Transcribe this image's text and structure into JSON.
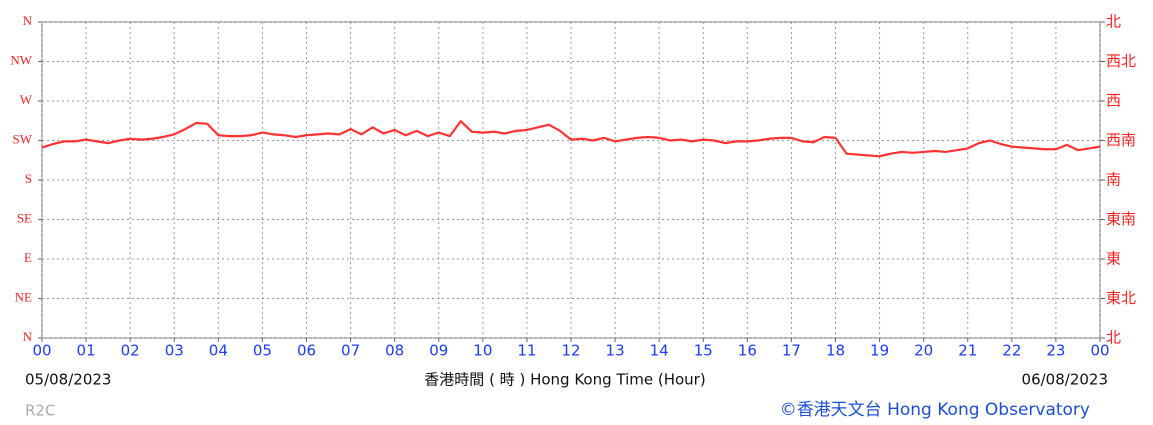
{
  "chart_data": {
    "type": "line",
    "x": [
      0,
      0.25,
      0.5,
      0.75,
      1,
      1.25,
      1.5,
      1.75,
      2,
      2.25,
      2.5,
      2.75,
      3,
      3.25,
      3.5,
      3.75,
      4,
      4.25,
      4.5,
      4.75,
      5,
      5.25,
      5.5,
      5.75,
      6,
      6.25,
      6.5,
      6.75,
      7,
      7.25,
      7.5,
      7.75,
      8,
      8.25,
      8.5,
      8.75,
      9,
      9.25,
      9.5,
      9.75,
      10,
      10.25,
      10.5,
      10.75,
      11,
      11.25,
      11.5,
      11.75,
      12,
      12.25,
      12.5,
      12.75,
      13,
      13.25,
      13.5,
      13.75,
      14,
      14.25,
      14.5,
      14.75,
      15,
      15.25,
      15.5,
      15.75,
      16,
      16.25,
      16.5,
      16.75,
      17,
      17.25,
      17.5,
      17.75,
      18,
      18.25,
      18.5,
      18.75,
      19,
      19.25,
      19.5,
      19.75,
      20,
      20.25,
      20.5,
      20.75,
      21,
      21.25,
      21.5,
      21.75,
      22,
      22.25,
      22.5,
      22.75,
      23,
      23.25,
      23.5,
      23.75,
      24
    ],
    "series": [
      {
        "color": "#ff3333",
        "values": [
          217,
          221,
          224,
          224,
          226,
          224,
          222,
          225,
          227,
          226,
          227,
          229,
          232,
          238,
          245,
          244,
          231,
          230,
          230,
          231,
          234,
          232,
          231,
          229,
          231,
          232,
          233,
          232,
          238,
          232,
          240,
          233,
          237,
          231,
          236,
          230,
          234,
          230,
          247,
          235,
          234,
          235,
          233,
          236,
          237,
          240,
          243,
          236,
          226,
          227,
          225,
          228,
          224,
          226,
          228,
          229,
          228,
          225,
          226,
          224,
          226,
          225,
          222,
          224,
          224,
          225,
          227,
          228,
          228,
          224,
          223,
          229,
          228,
          210,
          209,
          208,
          207,
          210,
          212,
          211,
          212,
          213,
          212,
          214,
          216,
          222,
          225,
          221,
          218,
          217,
          216,
          215,
          215,
          220,
          214,
          216,
          218
        ]
      }
    ],
    "xlim": [
      0,
      24
    ],
    "xticks": [
      {
        "value": 0,
        "label": "00"
      },
      {
        "value": 1,
        "label": "01"
      },
      {
        "value": 2,
        "label": "02"
      },
      {
        "value": 3,
        "label": "03"
      },
      {
        "value": 4,
        "label": "04"
      },
      {
        "value": 5,
        "label": "05"
      },
      {
        "value": 6,
        "label": "06"
      },
      {
        "value": 7,
        "label": "07"
      },
      {
        "value": 8,
        "label": "08"
      },
      {
        "value": 9,
        "label": "09"
      },
      {
        "value": 10,
        "label": "10"
      },
      {
        "value": 11,
        "label": "11"
      },
      {
        "value": 12,
        "label": "12"
      },
      {
        "value": 13,
        "label": "13"
      },
      {
        "value": 14,
        "label": "14"
      },
      {
        "value": 15,
        "label": "15"
      },
      {
        "value": 16,
        "label": "16"
      },
      {
        "value": 17,
        "label": "17"
      },
      {
        "value": 18,
        "label": "18"
      },
      {
        "value": 19,
        "label": "19"
      },
      {
        "value": 20,
        "label": "20"
      },
      {
        "value": 21,
        "label": "21"
      },
      {
        "value": 22,
        "label": "22"
      },
      {
        "value": 23,
        "label": "23"
      },
      {
        "value": 24,
        "label": "00"
      }
    ],
    "ylim": [
      0,
      360
    ],
    "yticks": [
      {
        "value": 0,
        "label": "N"
      },
      {
        "value": 45,
        "label": "NE"
      },
      {
        "value": 90,
        "label": "E"
      },
      {
        "value": 135,
        "label": "SE"
      },
      {
        "value": 180,
        "label": "S"
      },
      {
        "value": 225,
        "label": "SW"
      },
      {
        "value": 270,
        "label": "W"
      },
      {
        "value": 315,
        "label": "NW"
      },
      {
        "value": 360,
        "label": "N"
      }
    ],
    "y2lim": [
      0,
      360
    ],
    "y2ticks": [
      {
        "value": 0,
        "label": "北"
      },
      {
        "value": 45,
        "label": "東北"
      },
      {
        "value": 90,
        "label": "東"
      },
      {
        "value": 135,
        "label": "東南"
      },
      {
        "value": 180,
        "label": "南"
      },
      {
        "value": 225,
        "label": "西南"
      },
      {
        "value": 270,
        "label": "西"
      },
      {
        "value": 315,
        "label": "西北"
      },
      {
        "value": 360,
        "label": "北"
      }
    ],
    "grid": true,
    "x_label": "香港時間 ( 時 ) Hong Kong Time (Hour)",
    "start_date": "05/08/2023",
    "end_date": "06/08/2023",
    "station": "R2C",
    "credit": "©香港天文台 Hong Kong Observatory"
  }
}
